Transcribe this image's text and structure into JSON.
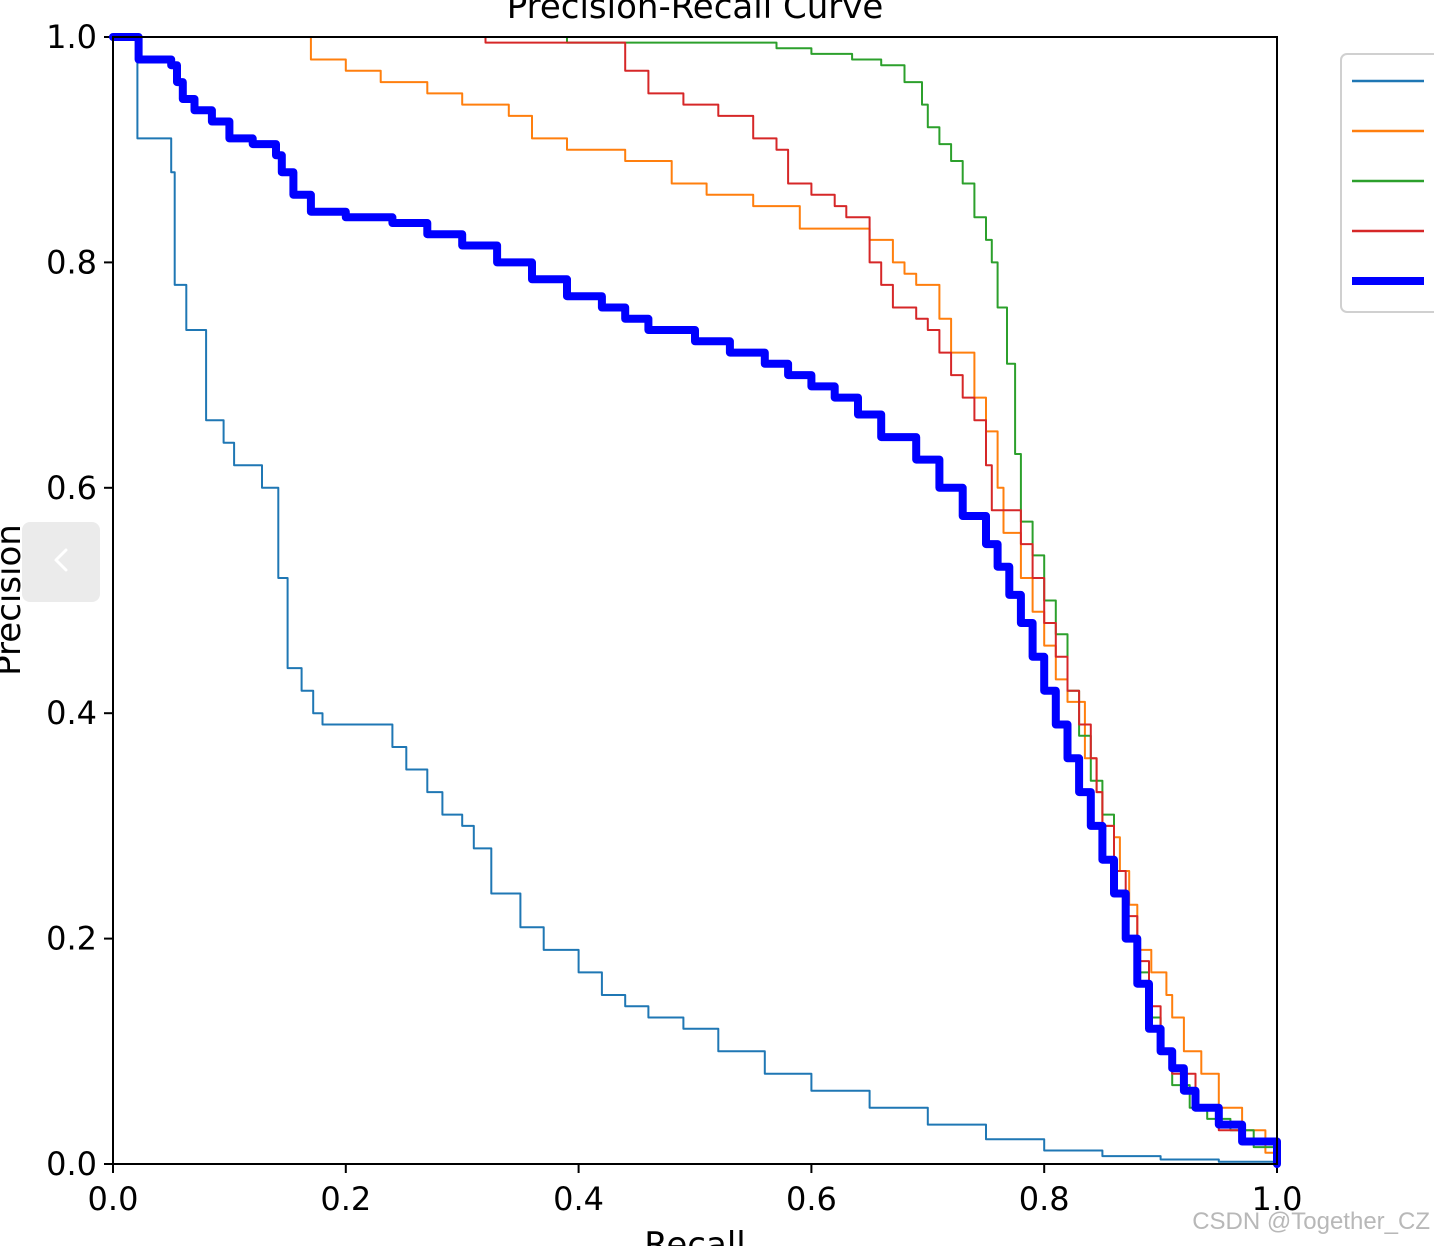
{
  "chart_data": {
    "type": "line",
    "title": "Precision-Recall Curve",
    "xlabel": "Recall",
    "ylabel": "Precision",
    "xlim": [
      0,
      1
    ],
    "ylim": [
      0,
      1
    ],
    "x_ticks": [
      "0.0",
      "0.2",
      "0.4",
      "0.6",
      "0.8",
      "1.0"
    ],
    "y_ticks": [
      "0.0",
      "0.2",
      "0.4",
      "0.6",
      "0.8",
      "1.0"
    ],
    "grid": false,
    "legend_position": "top-right",
    "series": [
      {
        "color": "#1f77b4",
        "stroke": "thin",
        "points": [
          [
            0,
            1.0
          ],
          [
            0.02,
            1.0
          ],
          [
            0.021,
            0.91
          ],
          [
            0.047,
            0.91
          ],
          [
            0.05,
            0.88
          ],
          [
            0.053,
            0.78
          ],
          [
            0.063,
            0.74
          ],
          [
            0.078,
            0.74
          ],
          [
            0.08,
            0.66
          ],
          [
            0.092,
            0.66
          ],
          [
            0.095,
            0.64
          ],
          [
            0.104,
            0.62
          ],
          [
            0.125,
            0.62
          ],
          [
            0.128,
            0.6
          ],
          [
            0.138,
            0.6
          ],
          [
            0.142,
            0.52
          ],
          [
            0.15,
            0.44
          ],
          [
            0.162,
            0.42
          ],
          [
            0.172,
            0.4
          ],
          [
            0.18,
            0.39
          ],
          [
            0.23,
            0.39
          ],
          [
            0.24,
            0.37
          ],
          [
            0.252,
            0.35
          ],
          [
            0.27,
            0.33
          ],
          [
            0.28,
            0.33
          ],
          [
            0.283,
            0.31
          ],
          [
            0.3,
            0.3
          ],
          [
            0.31,
            0.28
          ],
          [
            0.325,
            0.24
          ],
          [
            0.35,
            0.21
          ],
          [
            0.37,
            0.19
          ],
          [
            0.4,
            0.17
          ],
          [
            0.42,
            0.15
          ],
          [
            0.44,
            0.14
          ],
          [
            0.46,
            0.13
          ],
          [
            0.49,
            0.12
          ],
          [
            0.52,
            0.1
          ],
          [
            0.56,
            0.08
          ],
          [
            0.6,
            0.065
          ],
          [
            0.65,
            0.05
          ],
          [
            0.7,
            0.035
          ],
          [
            0.75,
            0.022
          ],
          [
            0.8,
            0.012
          ],
          [
            0.85,
            0.007
          ],
          [
            0.9,
            0.004
          ],
          [
            0.95,
            0.002
          ],
          [
            1.0,
            0.0
          ]
        ]
      },
      {
        "color": "#ff7f0e",
        "stroke": "thin",
        "points": [
          [
            0,
            1.0
          ],
          [
            0.157,
            1.0
          ],
          [
            0.17,
            0.98
          ],
          [
            0.2,
            0.97
          ],
          [
            0.23,
            0.96
          ],
          [
            0.27,
            0.95
          ],
          [
            0.3,
            0.94
          ],
          [
            0.34,
            0.93
          ],
          [
            0.36,
            0.91
          ],
          [
            0.39,
            0.9
          ],
          [
            0.44,
            0.89
          ],
          [
            0.48,
            0.87
          ],
          [
            0.51,
            0.86
          ],
          [
            0.55,
            0.85
          ],
          [
            0.59,
            0.83
          ],
          [
            0.63,
            0.83
          ],
          [
            0.65,
            0.82
          ],
          [
            0.67,
            0.8
          ],
          [
            0.68,
            0.79
          ],
          [
            0.69,
            0.78
          ],
          [
            0.71,
            0.75
          ],
          [
            0.72,
            0.72
          ],
          [
            0.74,
            0.68
          ],
          [
            0.75,
            0.65
          ],
          [
            0.76,
            0.6
          ],
          [
            0.765,
            0.56
          ],
          [
            0.78,
            0.52
          ],
          [
            0.79,
            0.49
          ],
          [
            0.8,
            0.46
          ],
          [
            0.81,
            0.43
          ],
          [
            0.82,
            0.41
          ],
          [
            0.835,
            0.36
          ],
          [
            0.845,
            0.33
          ],
          [
            0.85,
            0.3
          ],
          [
            0.86,
            0.29
          ],
          [
            0.865,
            0.26
          ],
          [
            0.873,
            0.23
          ],
          [
            0.88,
            0.19
          ],
          [
            0.892,
            0.17
          ],
          [
            0.905,
            0.15
          ],
          [
            0.91,
            0.13
          ],
          [
            0.92,
            0.1
          ],
          [
            0.935,
            0.08
          ],
          [
            0.95,
            0.05
          ],
          [
            0.97,
            0.03
          ],
          [
            0.99,
            0.01
          ],
          [
            1.0,
            0.0
          ]
        ]
      },
      {
        "color": "#2ca02c",
        "stroke": "thin",
        "points": [
          [
            0,
            1.0
          ],
          [
            0.385,
            1.0
          ],
          [
            0.39,
            0.995
          ],
          [
            0.55,
            0.995
          ],
          [
            0.57,
            0.99
          ],
          [
            0.6,
            0.985
          ],
          [
            0.635,
            0.98
          ],
          [
            0.66,
            0.975
          ],
          [
            0.68,
            0.96
          ],
          [
            0.695,
            0.94
          ],
          [
            0.7,
            0.92
          ],
          [
            0.71,
            0.905
          ],
          [
            0.72,
            0.89
          ],
          [
            0.73,
            0.87
          ],
          [
            0.74,
            0.84
          ],
          [
            0.75,
            0.82
          ],
          [
            0.755,
            0.8
          ],
          [
            0.76,
            0.76
          ],
          [
            0.768,
            0.71
          ],
          [
            0.775,
            0.63
          ],
          [
            0.78,
            0.57
          ],
          [
            0.79,
            0.54
          ],
          [
            0.8,
            0.5
          ],
          [
            0.81,
            0.47
          ],
          [
            0.82,
            0.42
          ],
          [
            0.83,
            0.38
          ],
          [
            0.84,
            0.34
          ],
          [
            0.85,
            0.31
          ],
          [
            0.86,
            0.24
          ],
          [
            0.87,
            0.2
          ],
          [
            0.88,
            0.17
          ],
          [
            0.89,
            0.13
          ],
          [
            0.9,
            0.1
          ],
          [
            0.91,
            0.07
          ],
          [
            0.925,
            0.05
          ],
          [
            0.94,
            0.04
          ],
          [
            0.96,
            0.03
          ],
          [
            0.98,
            0.015
          ],
          [
            1.0,
            0.0
          ]
        ]
      },
      {
        "color": "#d62728",
        "stroke": "thin",
        "points": [
          [
            0,
            1.0
          ],
          [
            0.3,
            1.0
          ],
          [
            0.32,
            0.995
          ],
          [
            0.43,
            0.995
          ],
          [
            0.44,
            0.97
          ],
          [
            0.46,
            0.95
          ],
          [
            0.49,
            0.94
          ],
          [
            0.52,
            0.93
          ],
          [
            0.55,
            0.91
          ],
          [
            0.57,
            0.9
          ],
          [
            0.58,
            0.87
          ],
          [
            0.6,
            0.86
          ],
          [
            0.62,
            0.85
          ],
          [
            0.63,
            0.84
          ],
          [
            0.65,
            0.8
          ],
          [
            0.66,
            0.78
          ],
          [
            0.67,
            0.76
          ],
          [
            0.69,
            0.75
          ],
          [
            0.7,
            0.74
          ],
          [
            0.71,
            0.72
          ],
          [
            0.72,
            0.7
          ],
          [
            0.73,
            0.68
          ],
          [
            0.74,
            0.66
          ],
          [
            0.75,
            0.62
          ],
          [
            0.755,
            0.58
          ],
          [
            0.78,
            0.55
          ],
          [
            0.79,
            0.52
          ],
          [
            0.8,
            0.48
          ],
          [
            0.81,
            0.45
          ],
          [
            0.82,
            0.42
          ],
          [
            0.83,
            0.39
          ],
          [
            0.84,
            0.36
          ],
          [
            0.845,
            0.33
          ],
          [
            0.85,
            0.3
          ],
          [
            0.86,
            0.26
          ],
          [
            0.87,
            0.22
          ],
          [
            0.88,
            0.18
          ],
          [
            0.89,
            0.14
          ],
          [
            0.9,
            0.1
          ],
          [
            0.91,
            0.08
          ],
          [
            0.93,
            0.05
          ],
          [
            0.95,
            0.03
          ],
          [
            0.97,
            0.02
          ],
          [
            1.0,
            0.0
          ]
        ]
      },
      {
        "color": "#0000ff",
        "stroke": "thick",
        "points": [
          [
            0,
            1.0
          ],
          [
            0.02,
            1.0
          ],
          [
            0.022,
            0.98
          ],
          [
            0.05,
            0.975
          ],
          [
            0.055,
            0.96
          ],
          [
            0.06,
            0.945
          ],
          [
            0.07,
            0.935
          ],
          [
            0.085,
            0.925
          ],
          [
            0.1,
            0.91
          ],
          [
            0.12,
            0.905
          ],
          [
            0.14,
            0.895
          ],
          [
            0.145,
            0.88
          ],
          [
            0.155,
            0.86
          ],
          [
            0.17,
            0.845
          ],
          [
            0.2,
            0.84
          ],
          [
            0.24,
            0.835
          ],
          [
            0.27,
            0.825
          ],
          [
            0.3,
            0.815
          ],
          [
            0.33,
            0.8
          ],
          [
            0.36,
            0.785
          ],
          [
            0.39,
            0.77
          ],
          [
            0.42,
            0.76
          ],
          [
            0.44,
            0.75
          ],
          [
            0.46,
            0.74
          ],
          [
            0.5,
            0.73
          ],
          [
            0.53,
            0.72
          ],
          [
            0.56,
            0.71
          ],
          [
            0.58,
            0.7
          ],
          [
            0.6,
            0.69
          ],
          [
            0.62,
            0.68
          ],
          [
            0.64,
            0.665
          ],
          [
            0.66,
            0.645
          ],
          [
            0.69,
            0.625
          ],
          [
            0.71,
            0.6
          ],
          [
            0.73,
            0.575
          ],
          [
            0.75,
            0.55
          ],
          [
            0.76,
            0.53
          ],
          [
            0.77,
            0.505
          ],
          [
            0.78,
            0.48
          ],
          [
            0.79,
            0.45
          ],
          [
            0.8,
            0.42
          ],
          [
            0.81,
            0.39
          ],
          [
            0.82,
            0.36
          ],
          [
            0.83,
            0.33
          ],
          [
            0.84,
            0.3
          ],
          [
            0.85,
            0.27
          ],
          [
            0.86,
            0.24
          ],
          [
            0.87,
            0.2
          ],
          [
            0.88,
            0.16
          ],
          [
            0.89,
            0.12
          ],
          [
            0.9,
            0.1
          ],
          [
            0.91,
            0.085
          ],
          [
            0.92,
            0.065
          ],
          [
            0.93,
            0.05
          ],
          [
            0.95,
            0.035
          ],
          [
            0.97,
            0.02
          ],
          [
            1.0,
            0.0
          ]
        ]
      }
    ]
  },
  "ui": {
    "prev_button_icon": "chevron-left-icon",
    "watermark": "CSDN @Together_CZ"
  }
}
